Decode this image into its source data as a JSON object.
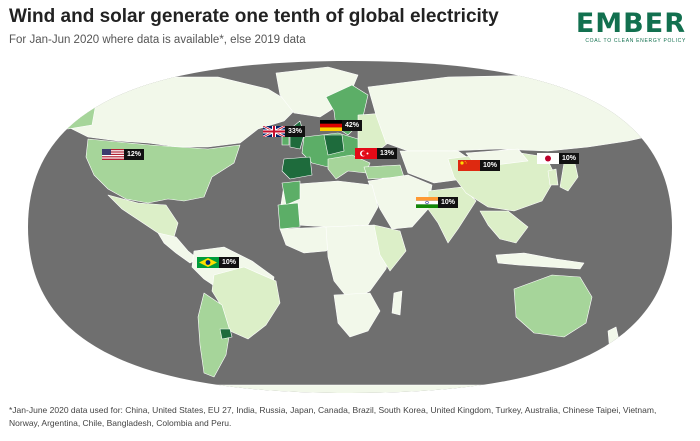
{
  "header": {
    "title": "Wind and solar generate one tenth of global electricity",
    "subtitle": "For Jan-Jun 2020 where data is available*, else 2019 data"
  },
  "logo": {
    "word": "EMBER",
    "tagline": "COAL TO CLEAN ENERGY POLICY",
    "color": "#12704f"
  },
  "map": {
    "ocean_color": "#6f6f6f",
    "land_base_color": "#f2f8ea",
    "shade_low": "#dcefc8",
    "shade_mid": "#a6d59a",
    "shade_high": "#5cae67",
    "shade_max": "#1e6b3c",
    "labels": [
      {
        "country": "United States",
        "flag": "us-flag-icon",
        "value": "12%"
      },
      {
        "country": "United Kingdom",
        "flag": "uk-flag-icon",
        "value": "33%"
      },
      {
        "country": "Germany",
        "flag": "germany-flag-icon",
        "value": "42%"
      },
      {
        "country": "Turkey",
        "flag": "turkey-flag-icon",
        "value": "13%"
      },
      {
        "country": "China",
        "flag": "china-flag-icon",
        "value": "10%"
      },
      {
        "country": "Japan",
        "flag": "japan-flag-icon",
        "value": "10%"
      },
      {
        "country": "India",
        "flag": "india-flag-icon",
        "value": "10%"
      },
      {
        "country": "Brazil",
        "flag": "brazil-flag-icon",
        "value": "10%"
      }
    ]
  },
  "footnote": "*Jan-June 2020 data used for: China, United States, EU 27, India, Russia, Japan, Canada, Brazil, South Korea, United Kingdom, Turkey, Australia, Chinese Taipei, Vietnam, Norway, Argentina, Chile, Bangladesh, Colombia and Peru."
}
